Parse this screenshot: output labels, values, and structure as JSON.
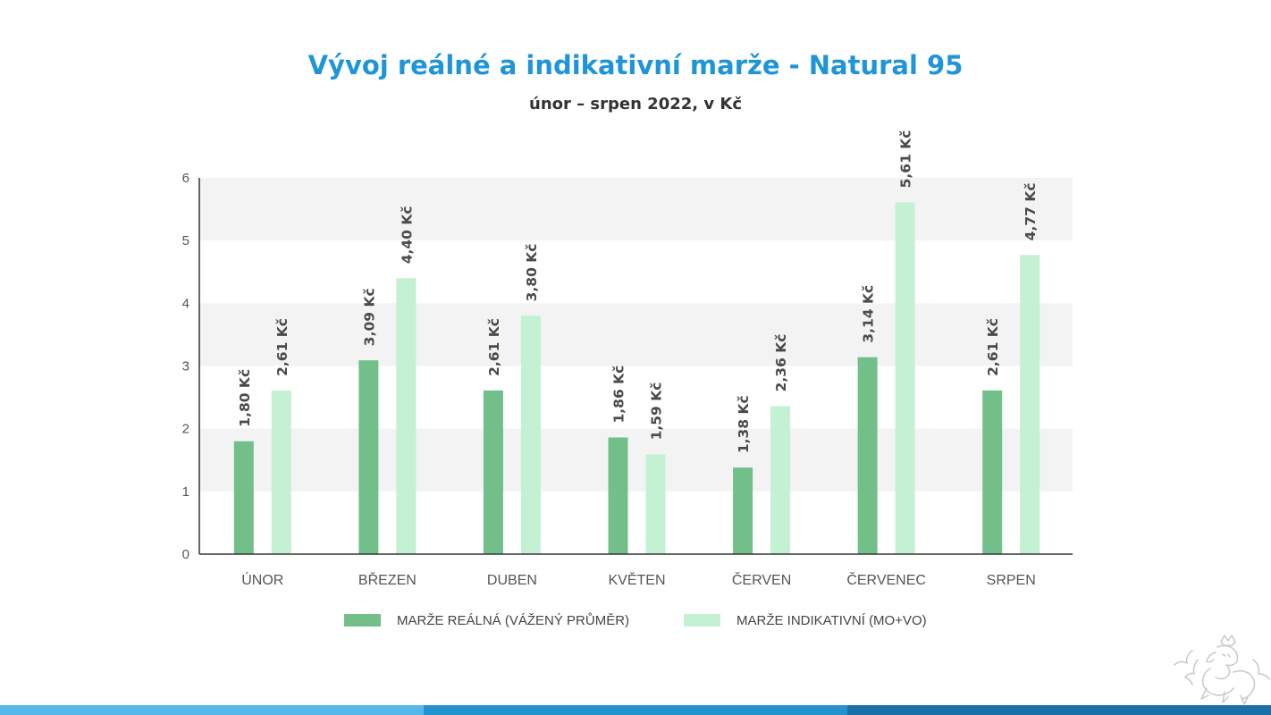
{
  "chart_data": {
    "type": "bar",
    "title": "Vývoj reálné a indikativní marže - Natural 95",
    "subtitle": "únor – srpen 2022, v Kč",
    "categories": [
      "ÚNOR",
      "BŘEZEN",
      "DUBEN",
      "KVĚTEN",
      "ČERVEN",
      "ČERVENEC",
      "SRPEN"
    ],
    "series": [
      {
        "name": "MARŽE REÁLNÁ (VÁŽENÝ PRŮMĚR)",
        "color": "#72bf8a",
        "values": [
          1.8,
          3.09,
          2.61,
          1.86,
          1.38,
          3.14,
          2.61
        ],
        "labels": [
          "1,80 Kč",
          "3,09 Kč",
          "2,61 Kč",
          "1,86 Kč",
          "1,38 Kč",
          "3,14 Kč",
          "2,61 Kč"
        ]
      },
      {
        "name": "MARŽE INDIKATIVNÍ (MO+VO)",
        "color": "#c3f1d2",
        "values": [
          2.61,
          4.4,
          3.8,
          1.59,
          2.36,
          5.61,
          4.77
        ],
        "labels": [
          "2,61 Kč",
          "4,40 Kč",
          "3,80 Kč",
          "1,59 Kč",
          "2,36 Kč",
          "5,61 Kč",
          "4,77 Kč"
        ]
      }
    ],
    "yticks": [
      "0",
      "1",
      "2",
      "3",
      "4",
      "5",
      "6"
    ],
    "ylim": [
      0,
      6
    ],
    "xlabel": "",
    "ylabel": "",
    "grid": "alternating horizontal bands",
    "legend": "bottom"
  },
  "colors": {
    "title": "#1f95d8",
    "band": "#f3f3f3",
    "footer": [
      "#55b8e8",
      "#2592cf",
      "#1a6fa6"
    ]
  }
}
